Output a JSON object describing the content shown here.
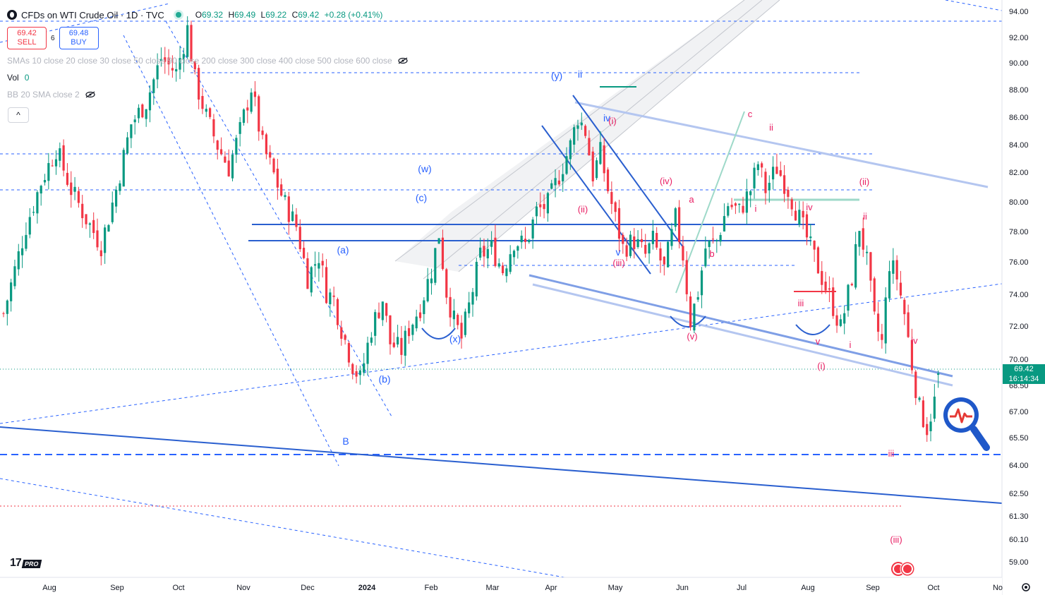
{
  "header": {
    "symbol_title": "CFDs on WTI Crude Oil · 1D · TVC",
    "ohlc": {
      "o_key": "O",
      "o": "69.32",
      "h_key": "H",
      "h": "69.49",
      "l_key": "L",
      "l": "69.22",
      "c_key": "C",
      "c": "69.42",
      "change": "+0.28 (+0.41%)"
    }
  },
  "trade": {
    "sell_price": "69.42",
    "sell_label": "SELL",
    "spread": "6",
    "buy_price": "69.48",
    "buy_label": "BUY"
  },
  "indicators": {
    "sma_label": "SMAs 10 close 20 close 30 close 50 close 90 close 200 close 300 close 400 close 500 close 600 close",
    "vol_label": "Vol",
    "vol_value": "0",
    "bb_label": "BB 20 SMA close 2",
    "collapse_glyph": "^"
  },
  "logo": {
    "text": "17",
    "badge": "PRO"
  },
  "price_axis_labels": {
    "last_price": "69.42",
    "countdown": "16:14:34"
  },
  "colors": {
    "up": "#089981",
    "down": "#f23645",
    "wave_blue": "#2962ff",
    "wave_red": "#e91e63",
    "channel": "#9bb4ea"
  },
  "icons": {
    "symbol": "symbol-logo-icon",
    "live": "market-open-icon",
    "eye": "eye-hidden-icon",
    "settings": "settings-gear-icon",
    "zoom": "magnifier-pulse-icon",
    "flag": "us-flag-event-icon"
  },
  "chart_data": {
    "type": "candlestick",
    "title": "CFDs on WTI Crude Oil · 1D · TVC",
    "xlabel": "",
    "ylabel": "",
    "ylim": [
      58.0,
      94.5
    ],
    "y_ticks": [
      94.0,
      92.0,
      90.0,
      88.0,
      86.0,
      84.0,
      82.0,
      80.0,
      78.0,
      76.0,
      74.0,
      72.0,
      70.0,
      68.5,
      67.0,
      65.5,
      64.0,
      62.5,
      61.3,
      60.1,
      59.0
    ],
    "x_ticks": [
      "Aug",
      "Sep",
      "Oct",
      "Nov",
      "Dec",
      "2024",
      "Feb",
      "Mar",
      "Apr",
      "May",
      "Jun",
      "Jul",
      "Aug",
      "Sep",
      "Oct",
      "No"
    ],
    "last_price": 69.42,
    "close_path": [
      [
        0,
        73.5
      ],
      [
        3,
        76.5
      ],
      [
        6,
        79.5
      ],
      [
        10,
        82.5
      ],
      [
        14,
        84.8
      ],
      [
        18,
        82.0
      ],
      [
        22,
        80.0
      ],
      [
        26,
        78.2
      ],
      [
        30,
        82.0
      ],
      [
        34,
        86.5
      ],
      [
        38,
        88.0
      ],
      [
        42,
        91.0
      ],
      [
        46,
        90.0
      ],
      [
        49,
        93.0
      ],
      [
        51,
        89.5
      ],
      [
        54,
        87.0
      ],
      [
        57,
        85.0
      ],
      [
        60,
        83.5
      ],
      [
        63,
        86.0
      ],
      [
        66,
        89.0
      ],
      [
        69,
        85.0
      ],
      [
        72,
        83.0
      ],
      [
        75,
        81.0
      ],
      [
        78,
        79.5
      ],
      [
        81,
        76.0
      ],
      [
        84,
        77.5
      ],
      [
        86,
        75.0
      ],
      [
        88,
        74.5
      ],
      [
        90,
        72.5
      ],
      [
        93,
        70.0
      ],
      [
        95,
        69.0
      ],
      [
        98,
        72.5
      ],
      [
        101,
        74.5
      ],
      [
        103,
        71.5
      ],
      [
        106,
        71.0
      ],
      [
        108,
        72.5
      ],
      [
        111,
        74.0
      ],
      [
        114,
        76.5
      ],
      [
        116,
        79.0
      ],
      [
        118,
        75.0
      ],
      [
        120,
        73.0
      ],
      [
        122,
        71.8
      ],
      [
        124,
        74.0
      ],
      [
        127,
        77.5
      ],
      [
        130,
        78.0
      ],
      [
        133,
        76.5
      ],
      [
        136,
        78.5
      ],
      [
        139,
        78.2
      ],
      [
        142,
        80.5
      ],
      [
        145,
        81.0
      ],
      [
        148,
        83.0
      ],
      [
        151,
        85.0
      ],
      [
        153,
        87.0
      ],
      [
        155,
        86.0
      ],
      [
        157,
        83.0
      ],
      [
        159,
        84.5
      ],
      [
        161,
        82.0
      ],
      [
        163,
        80.0
      ],
      [
        165,
        78.0
      ],
      [
        168,
        78.5
      ],
      [
        171,
        77.5
      ],
      [
        173,
        78.5
      ],
      [
        176,
        76.5
      ],
      [
        179,
        80.0
      ],
      [
        181,
        77.5
      ],
      [
        183,
        73.0
      ],
      [
        185,
        75.0
      ],
      [
        187,
        78.0
      ],
      [
        190,
        78.5
      ],
      [
        193,
        81.0
      ],
      [
        196,
        80.5
      ],
      [
        199,
        82.0
      ],
      [
        201,
        83.8
      ],
      [
        203,
        82.0
      ],
      [
        206,
        83.5
      ],
      [
        209,
        82.0
      ],
      [
        212,
        80.0
      ],
      [
        215,
        78.0
      ],
      [
        218,
        76.0
      ],
      [
        221,
        74.0
      ],
      [
        223,
        72.5
      ],
      [
        226,
        76.0
      ],
      [
        228,
        79.5
      ],
      [
        230,
        77.0
      ],
      [
        232,
        73.0
      ],
      [
        234,
        71.5
      ],
      [
        236,
        77.0
      ],
      [
        238,
        76.0
      ],
      [
        240,
        73.5
      ],
      [
        242,
        70.0
      ],
      [
        244,
        67.0
      ],
      [
        246,
        65.7
      ],
      [
        248,
        67.5
      ],
      [
        249,
        69.4
      ]
    ],
    "wave_labels_blue": [
      "(y)",
      "ii",
      "(w)",
      "(c)",
      "(a)",
      "(b)",
      "(x)",
      "B",
      "i",
      "iv",
      "v"
    ],
    "wave_labels_red": [
      "c",
      "ii",
      "(ii)",
      "ii",
      "(iv)",
      "a",
      "b",
      "i",
      "iv",
      "iii",
      "v",
      "i",
      "(i)",
      "iv",
      "(v)",
      "(iii)",
      "iii",
      "(ii)",
      "(iii)",
      "(i)"
    ]
  }
}
